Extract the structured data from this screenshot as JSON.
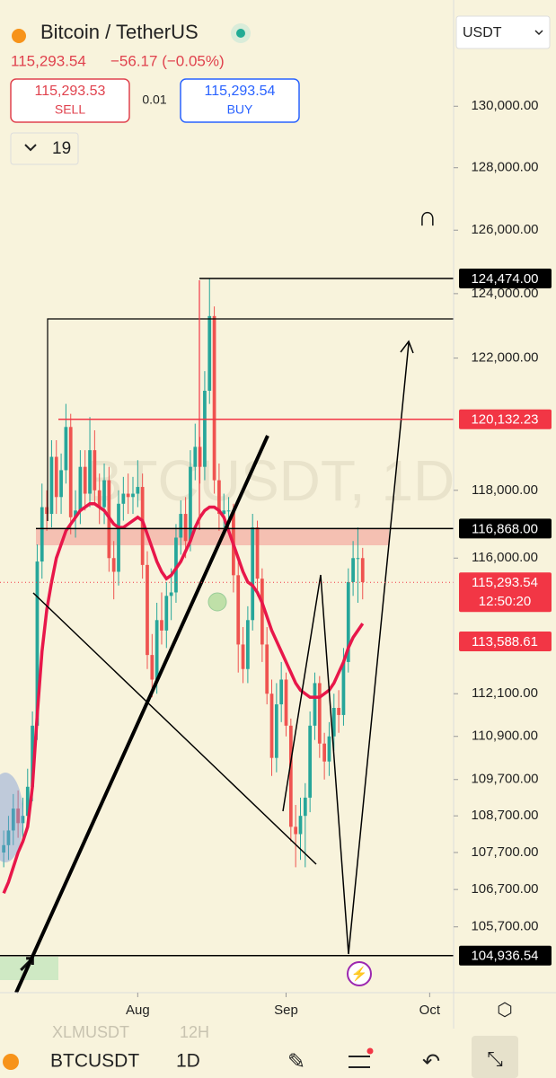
{
  "header": {
    "title": "Bitcoin / TetherUS",
    "price": "115,293.54",
    "change": "−56.17 (−0.05%)",
    "sell_price": "115,293.53",
    "sell": "SELL",
    "spread": "0.01",
    "buy_price": "115,293.54",
    "buy": "BUY",
    "indicators_count": "19",
    "currency": "USDT"
  },
  "watermark": "BTCUSDT, 1D",
  "footer": {
    "symbol": "BTCUSDT",
    "interval": "1D",
    "ghost_symbol": "XLMUSDT",
    "ghost_interval": "12H"
  },
  "chart_data": {
    "type": "candlestick",
    "log_scale": true,
    "up_color": "#26a69a",
    "down_color": "#ef5350",
    "ma_color": "#e8174a",
    "ylim": [
      103960,
      133530
    ],
    "yticks": [
      {
        "value": 130000,
        "label": "130,000.00"
      },
      {
        "value": 128000,
        "label": "128,000.00"
      },
      {
        "value": 126000,
        "label": "126,000.00"
      },
      {
        "value": 124000,
        "label": "124,000.00"
      },
      {
        "value": 122000,
        "label": "122,000.00"
      },
      {
        "value": 118000,
        "label": "118,000.00"
      },
      {
        "value": 116000,
        "label": "116,000.00"
      },
      {
        "value": 112100,
        "label": "112,100.00"
      },
      {
        "value": 110900,
        "label": "110,900.00"
      },
      {
        "value": 109700,
        "label": "109,700.00"
      },
      {
        "value": 108700,
        "label": "108,700.00"
      },
      {
        "value": 107700,
        "label": "107,700.00"
      },
      {
        "value": 106700,
        "label": "106,700.00"
      },
      {
        "value": 105700,
        "label": "105,700.00"
      }
    ],
    "xlim": [
      -0.4,
      94
    ],
    "xticks": [
      {
        "value": 28,
        "label": "Aug"
      },
      {
        "value": 59,
        "label": "Sep"
      },
      {
        "value": 89,
        "label": "Oct"
      }
    ],
    "price_tags": [
      {
        "value": 124474,
        "label": "124,474.00",
        "color": "#000000"
      },
      {
        "value": 120132.23,
        "label": "120,132.23",
        "color": "#f23645"
      },
      {
        "value": 116868,
        "label": "116,868.00",
        "color": "#000000"
      },
      {
        "value": 113588.61,
        "label": "113,588.61",
        "color": "#f23645"
      },
      {
        "value": 104936.54,
        "label": "104,936.54",
        "color": "#000000"
      }
    ],
    "last_price": {
      "value": 115293.54,
      "label": "115,293.54",
      "countdown": "12:50:20",
      "color": "#f23645"
    },
    "candles": [
      [
        107700,
        108300,
        107300,
        107900
      ],
      [
        107900,
        108700,
        107500,
        108300
      ],
      [
        108300,
        109300,
        107900,
        108900
      ],
      [
        108900,
        109400,
        108100,
        108500
      ],
      [
        108500,
        109200,
        108000,
        108700
      ],
      [
        108700,
        110000,
        108300,
        109500
      ],
      [
        109500,
        111600,
        109100,
        111200
      ],
      [
        111200,
        116400,
        110800,
        115900
      ],
      [
        115900,
        118200,
        115400,
        117500
      ],
      [
        117500,
        118000,
        116800,
        117300
      ],
      [
        117300,
        119500,
        116900,
        119000
      ],
      [
        119000,
        119500,
        117300,
        117800
      ],
      [
        117800,
        119100,
        117300,
        118600
      ],
      [
        118600,
        120600,
        118200,
        119900
      ],
      [
        119900,
        120300,
        116700,
        117200
      ],
      [
        117200,
        118000,
        116600,
        117400
      ],
      [
        117400,
        119200,
        117000,
        118700
      ],
      [
        118700,
        119200,
        117400,
        117900
      ],
      [
        117900,
        120200,
        117500,
        119200
      ],
      [
        119200,
        119800,
        117600,
        118000
      ],
      [
        118000,
        118500,
        117000,
        117500
      ],
      [
        117500,
        118800,
        117000,
        118300
      ],
      [
        118300,
        118700,
        115600,
        116000
      ],
      [
        116000,
        116500,
        114800,
        115600
      ],
      [
        115600,
        118000,
        115200,
        117600
      ],
      [
        117600,
        118400,
        117100,
        117900
      ],
      [
        117900,
        118500,
        117300,
        117800
      ],
      [
        117800,
        118400,
        117300,
        117900
      ],
      [
        117900,
        118900,
        117500,
        118100
      ],
      [
        118100,
        118500,
        115400,
        115800
      ],
      [
        115800,
        116200,
        112800,
        113200
      ],
      [
        113200,
        113800,
        112000,
        112500
      ],
      [
        112500,
        114700,
        112100,
        114200
      ],
      [
        114200,
        115000,
        113500,
        113900
      ],
      [
        113900,
        115300,
        113400,
        114900
      ],
      [
        114900,
        115700,
        114200,
        115000
      ],
      [
        115000,
        117000,
        114700,
        116600
      ],
      [
        116600,
        117700,
        116100,
        117300
      ],
      [
        117300,
        117800,
        116000,
        116500
      ],
      [
        116500,
        119200,
        116200,
        118700
      ],
      [
        118700,
        120000,
        118300,
        119300
      ],
      [
        119300,
        119600,
        118200,
        118700
      ],
      [
        118700,
        121600,
        118300,
        121000
      ],
      [
        121000,
        124474,
        120600,
        123300
      ],
      [
        123300,
        123600,
        117900,
        118300
      ],
      [
        118300,
        118800,
        116800,
        117300
      ],
      [
        117300,
        117900,
        116900,
        117400
      ],
      [
        117400,
        117800,
        116900,
        117400
      ],
      [
        117400,
        117600,
        115000,
        115500
      ],
      [
        115500,
        115900,
        112700,
        113500
      ],
      [
        113500,
        114000,
        112400,
        112800
      ],
      [
        112800,
        114600,
        112400,
        114200
      ],
      [
        114200,
        117300,
        113900,
        116900
      ],
      [
        116900,
        117100,
        114900,
        115400
      ],
      [
        115400,
        115700,
        113000,
        113500
      ],
      [
        113500,
        114000,
        111800,
        112100
      ],
      [
        112100,
        112500,
        109800,
        110300
      ],
      [
        110300,
        112400,
        109900,
        111800
      ],
      [
        111800,
        113000,
        111300,
        112500
      ],
      [
        112500,
        112700,
        110900,
        111200
      ],
      [
        111200,
        111400,
        108000,
        108400
      ],
      [
        108400,
        109000,
        107300,
        108200
      ],
      [
        108200,
        109200,
        107500,
        108700
      ],
      [
        108700,
        109600,
        107300,
        109200
      ],
      [
        109200,
        111600,
        108800,
        111200
      ],
      [
        111200,
        112700,
        110800,
        112400
      ],
      [
        112400,
        112600,
        110300,
        110700
      ],
      [
        110700,
        111000,
        109700,
        110200
      ],
      [
        110200,
        111300,
        109800,
        110900
      ],
      [
        110900,
        112100,
        110500,
        111700
      ],
      [
        111700,
        112200,
        111000,
        111500
      ],
      [
        111500,
        113400,
        111200,
        113000
      ],
      [
        113000,
        115700,
        112700,
        115300
      ],
      [
        115300,
        116500,
        114900,
        116000
      ],
      [
        116000,
        116900,
        114700,
        116000
      ],
      [
        116000,
        116300,
        114800,
        115300
      ]
    ],
    "ma": [
      106600,
      106900,
      107300,
      107700,
      108000,
      108400,
      109500,
      111500,
      113300,
      114500,
      115300,
      116000,
      116400,
      116800,
      117000,
      117200,
      117400,
      117500,
      117600,
      117600,
      117500,
      117400,
      117200,
      117000,
      116900,
      116900,
      117000,
      117100,
      117200,
      117100,
      116700,
      116300,
      115900,
      115600,
      115400,
      115500,
      115700,
      115900,
      116200,
      116500,
      116900,
      117200,
      117400,
      117500,
      117500,
      117400,
      117200,
      116800,
      116400,
      116000,
      115600,
      115300,
      115200,
      115000,
      114700,
      114300,
      113900,
      113600,
      113300,
      113000,
      112700,
      112400,
      112200,
      112100,
      112000,
      112000,
      112000,
      112100,
      112200,
      112400,
      112700,
      113000,
      113400,
      113700,
      113900,
      114100
    ]
  }
}
